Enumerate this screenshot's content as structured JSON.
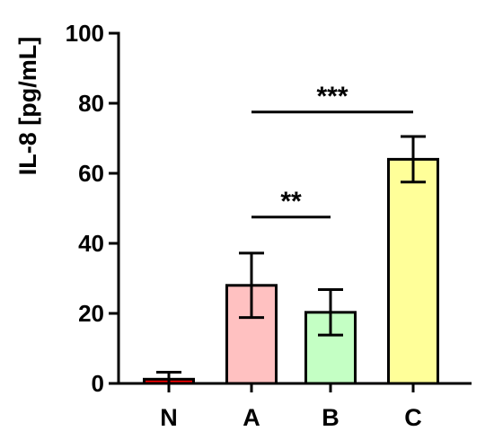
{
  "chart_data": {
    "type": "bar",
    "title": "",
    "xlabel": "",
    "ylabel": "IL-8 [pg/mL]",
    "ylim": [
      0,
      100
    ],
    "yticks": [
      0,
      20,
      40,
      60,
      80,
      100
    ],
    "categories": [
      "N",
      "A",
      "B",
      "C"
    ],
    "values": [
      1.2,
      28.0,
      20.3,
      64.0
    ],
    "errors": [
      2.0,
      9.2,
      6.5,
      6.5
    ],
    "colors": [
      "#ff0000",
      "#ffc1c1",
      "#c4ffc4",
      "#ffff99"
    ],
    "grid": false,
    "legend": "none",
    "significance": [
      {
        "from": "A",
        "to": "C",
        "label": "***",
        "y": 77.5
      },
      {
        "from": "A",
        "to": "B",
        "label": "**",
        "y": 47.5
      }
    ]
  }
}
